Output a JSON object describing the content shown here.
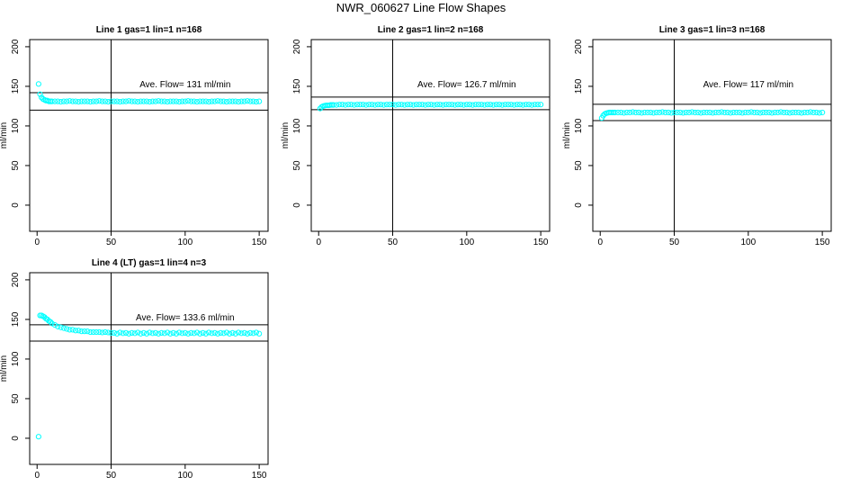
{
  "title": "NWR_060627  Line Flow Shapes",
  "chart_data": [
    {
      "type": "scatter",
      "title": "Line 1 gas=1 lin=1 n=168",
      "ylabel": "ml/min",
      "annotation": "Ave. Flow=  131  ml/min",
      "xlim": [
        -5,
        156
      ],
      "ylim": [
        -33,
        209
      ],
      "xticks": [
        0,
        50,
        100,
        150
      ],
      "yticks": [
        0,
        50,
        100,
        150,
        200
      ],
      "hlines": [
        142,
        120
      ],
      "vline": 50,
      "color": "#00ffff",
      "x": [
        1,
        2,
        3,
        4,
        5,
        6,
        7,
        8,
        9,
        10,
        12,
        14,
        16,
        18,
        20,
        22,
        24,
        26,
        28,
        30,
        32,
        34,
        36,
        38,
        40,
        42,
        44,
        46,
        48,
        50,
        52,
        54,
        56,
        58,
        60,
        62,
        64,
        66,
        68,
        70,
        72,
        74,
        76,
        78,
        80,
        82,
        84,
        86,
        88,
        90,
        92,
        94,
        96,
        98,
        100,
        102,
        104,
        106,
        108,
        110,
        112,
        114,
        116,
        118,
        120,
        122,
        124,
        126,
        128,
        130,
        132,
        134,
        136,
        138,
        140,
        142,
        144,
        146,
        148,
        150
      ],
      "values": [
        153,
        140,
        136,
        134,
        133,
        132,
        132,
        131,
        131,
        131,
        131,
        131,
        130.5,
        131,
        131,
        131.5,
        131,
        131,
        130.5,
        131,
        131,
        131,
        130.5,
        131,
        131,
        131.5,
        131,
        131,
        130.5,
        131,
        131,
        131,
        130.5,
        131,
        131,
        131.5,
        131,
        131,
        130.5,
        131,
        131,
        131,
        130.5,
        131,
        131,
        131.5,
        131,
        131,
        130.5,
        131,
        131,
        131,
        130.5,
        131,
        131,
        131.5,
        131,
        131,
        130.5,
        131,
        131,
        131,
        130.5,
        131,
        131,
        131.5,
        131,
        131,
        130.5,
        131,
        131,
        131,
        130.5,
        131,
        131,
        131.5,
        131,
        131,
        130.5,
        131
      ]
    },
    {
      "type": "scatter",
      "title": "Line 2 gas=1 lin=2 n=168",
      "ylabel": "ml/min",
      "annotation": "Ave. Flow=  126.7  ml/min",
      "xlim": [
        -5,
        156
      ],
      "ylim": [
        -33,
        209
      ],
      "xticks": [
        0,
        50,
        100,
        150
      ],
      "yticks": [
        0,
        50,
        100,
        150,
        200
      ],
      "hlines": [
        136.4,
        120.5
      ],
      "vline": 50,
      "color": "#00ffff",
      "x": [
        1,
        2,
        3,
        4,
        5,
        6,
        7,
        8,
        9,
        10,
        12,
        14,
        16,
        18,
        20,
        22,
        24,
        26,
        28,
        30,
        32,
        34,
        36,
        38,
        40,
        42,
        44,
        46,
        48,
        50,
        52,
        54,
        56,
        58,
        60,
        62,
        64,
        66,
        68,
        70,
        72,
        74,
        76,
        78,
        80,
        82,
        84,
        86,
        88,
        90,
        92,
        94,
        96,
        98,
        100,
        102,
        104,
        106,
        108,
        110,
        112,
        114,
        116,
        118,
        120,
        122,
        124,
        126,
        128,
        130,
        132,
        134,
        136,
        138,
        140,
        142,
        144,
        146,
        148,
        150
      ],
      "values": [
        122,
        124,
        125,
        125.5,
        126,
        126,
        126,
        126.5,
        126.5,
        126.5,
        126.5,
        127,
        127,
        126.5,
        127,
        127,
        126.5,
        127,
        127,
        127,
        126.5,
        127,
        127,
        126.5,
        127,
        127,
        126.5,
        127,
        127,
        127,
        126.5,
        127,
        127,
        126.5,
        127,
        127,
        126.5,
        127,
        127,
        127,
        126.5,
        127,
        127,
        126.5,
        127,
        127,
        126.5,
        127,
        127,
        127,
        126.5,
        127,
        127,
        126.5,
        127,
        127,
        126.5,
        127,
        127,
        127,
        126.5,
        127,
        127,
        126.5,
        127,
        127,
        126.5,
        127,
        127,
        127,
        126.5,
        127,
        127,
        126.5,
        127,
        127,
        126.5,
        127,
        127,
        127
      ]
    },
    {
      "type": "scatter",
      "title": "Line 3 gas=1 lin=3 n=168",
      "ylabel": "ml/min",
      "annotation": "Ave. Flow=  117  ml/min",
      "xlim": [
        -5,
        156
      ],
      "ylim": [
        -33,
        209
      ],
      "xticks": [
        0,
        50,
        100,
        150
      ],
      "yticks": [
        0,
        50,
        100,
        150,
        200
      ],
      "hlines": [
        127.3,
        106.8
      ],
      "vline": 50,
      "color": "#00ffff",
      "x": [
        1,
        2,
        3,
        4,
        5,
        6,
        7,
        8,
        9,
        10,
        12,
        14,
        16,
        18,
        20,
        22,
        24,
        26,
        28,
        30,
        32,
        34,
        36,
        38,
        40,
        42,
        44,
        46,
        48,
        50,
        52,
        54,
        56,
        58,
        60,
        62,
        64,
        66,
        68,
        70,
        72,
        74,
        76,
        78,
        80,
        82,
        84,
        86,
        88,
        90,
        92,
        94,
        96,
        98,
        100,
        102,
        104,
        106,
        108,
        110,
        112,
        114,
        116,
        118,
        120,
        122,
        124,
        126,
        128,
        130,
        132,
        134,
        136,
        138,
        140,
        142,
        144,
        146,
        148,
        150
      ],
      "values": [
        110,
        113,
        115,
        116,
        116.5,
        117,
        117,
        117,
        117,
        117,
        117,
        117,
        116.5,
        117,
        117,
        117.5,
        117,
        117,
        116.5,
        117,
        117,
        117,
        116.5,
        117,
        117,
        117.5,
        117,
        117,
        116.5,
        117,
        117,
        117,
        116.5,
        117,
        117,
        117.5,
        117,
        117,
        116.5,
        117,
        117,
        117,
        116.5,
        117,
        117,
        117.5,
        117,
        117,
        116.5,
        117,
        117,
        117,
        116.5,
        117,
        117,
        117.5,
        117,
        117,
        116.5,
        117,
        117,
        117,
        116.5,
        117,
        117,
        117.5,
        117,
        117,
        116.5,
        117,
        117,
        117,
        116.5,
        117,
        117,
        117.5,
        117,
        117,
        116.5,
        117
      ]
    },
    {
      "type": "scatter",
      "title": "Line 4 (LT) gas=1 lin=4 n=3",
      "ylabel": "ml/min",
      "annotation": "Ave. Flow=  133.6  ml/min",
      "xlim": [
        -5,
        156
      ],
      "ylim": [
        -33,
        209
      ],
      "xticks": [
        0,
        50,
        100,
        150
      ],
      "yticks": [
        0,
        50,
        100,
        150,
        200
      ],
      "hlines": [
        143.2,
        122.7
      ],
      "vline": 50,
      "color": "#00ffff",
      "x": [
        1,
        2,
        3,
        4,
        5,
        6,
        7,
        8,
        9,
        10,
        12,
        14,
        16,
        18,
        20,
        22,
        24,
        26,
        28,
        30,
        32,
        34,
        36,
        38,
        40,
        42,
        44,
        46,
        48,
        50,
        52,
        54,
        56,
        58,
        60,
        62,
        64,
        66,
        68,
        70,
        72,
        74,
        76,
        78,
        80,
        82,
        84,
        86,
        88,
        90,
        92,
        94,
        96,
        98,
        100,
        102,
        104,
        106,
        108,
        110,
        112,
        114,
        116,
        118,
        120,
        122,
        124,
        126,
        128,
        130,
        132,
        134,
        136,
        138,
        140,
        142,
        144,
        146,
        148,
        150
      ],
      "values": [
        2,
        155,
        155,
        154,
        153,
        151,
        150,
        148,
        147,
        145,
        143,
        141,
        140,
        139,
        138,
        137,
        137,
        136,
        136,
        135,
        135,
        135,
        134,
        134,
        134,
        134,
        133.5,
        134,
        133.5,
        133,
        133,
        132,
        133.5,
        132.5,
        133,
        132,
        133,
        132.5,
        133.5,
        132,
        133,
        132,
        133.5,
        132.5,
        133,
        132,
        133,
        132.5,
        133.5,
        132,
        133,
        132,
        133.5,
        132.5,
        133,
        132,
        133,
        132.5,
        133.5,
        132,
        133,
        132,
        133.5,
        132.5,
        133,
        132,
        133,
        132.5,
        133.5,
        132,
        133,
        132,
        133.5,
        132.5,
        133,
        132,
        133,
        132.5,
        133.5,
        132
      ]
    }
  ]
}
